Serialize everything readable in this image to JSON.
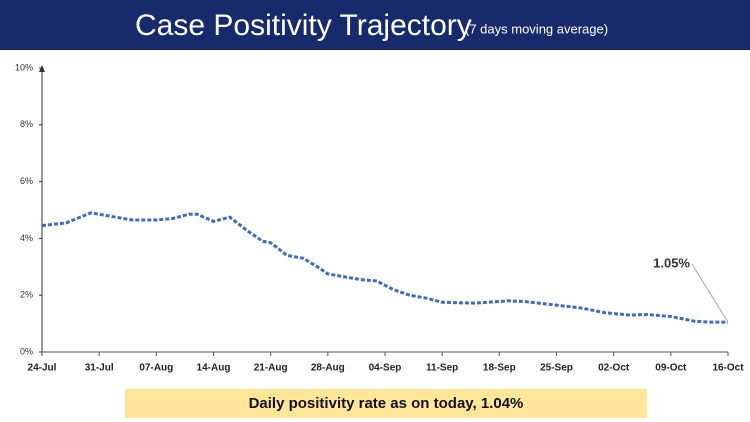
{
  "chart_data": {
    "type": "line",
    "title": "Case Positivity Trajectory",
    "subtitle": "(7 days moving average)",
    "x": [
      0,
      3,
      6,
      8,
      11,
      14,
      16,
      18,
      19,
      21,
      23,
      25,
      27,
      28,
      30,
      32,
      34,
      35,
      37,
      39,
      41,
      43,
      45,
      47,
      49,
      53,
      57,
      59,
      63,
      66,
      69,
      72,
      74,
      77,
      80,
      82,
      84
    ],
    "series": [
      {
        "name": "Case positivity",
        "color": "#3d6cc0",
        "values": [
          4.45,
          4.55,
          4.9,
          4.8,
          4.65,
          4.65,
          4.7,
          4.85,
          4.85,
          4.6,
          4.75,
          4.3,
          3.9,
          3.85,
          3.4,
          3.3,
          2.95,
          2.75,
          2.65,
          2.55,
          2.5,
          2.2,
          2.0,
          1.9,
          1.75,
          1.72,
          1.8,
          1.78,
          1.65,
          1.55,
          1.38,
          1.3,
          1.32,
          1.25,
          1.08,
          1.05,
          1.05
        ]
      }
    ],
    "xlim": [
      0,
      84
    ],
    "xticks": [
      {
        "value": 0,
        "label": "24-Jul"
      },
      {
        "value": 7,
        "label": "31-Jul"
      },
      {
        "value": 14,
        "label": "07-Aug"
      },
      {
        "value": 21,
        "label": "14-Aug"
      },
      {
        "value": 28,
        "label": "21-Aug"
      },
      {
        "value": 35,
        "label": "28-Aug"
      },
      {
        "value": 42,
        "label": "04-Sep"
      },
      {
        "value": 49,
        "label": "11-Sep"
      },
      {
        "value": 56,
        "label": "18-Sep"
      },
      {
        "value": 63,
        "label": "25-Sep"
      },
      {
        "value": 70,
        "label": "02-Oct"
      },
      {
        "value": 77,
        "label": "09-Oct"
      },
      {
        "value": 84,
        "label": "16-Oct"
      }
    ],
    "ylim": [
      0,
      10
    ],
    "yticks": [
      {
        "value": 0,
        "label": "0%"
      },
      {
        "value": 2,
        "label": "2%"
      },
      {
        "value": 4,
        "label": "4%"
      },
      {
        "value": 6,
        "label": "6%"
      },
      {
        "value": 8,
        "label": "8%"
      },
      {
        "value": 10,
        "label": "10%"
      }
    ],
    "annotation": {
      "text": "1.05%",
      "x": 84,
      "y": 1.05
    },
    "footer_note": "Daily positivity rate as on today, 1.04%"
  }
}
